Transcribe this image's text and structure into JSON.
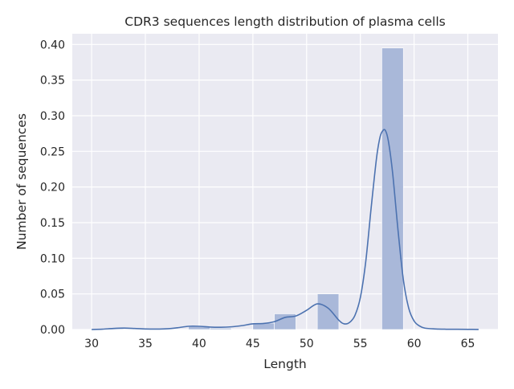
{
  "chart_data": {
    "type": "bar",
    "title": "CDR3 sequences length distribution of plasma cells",
    "xlabel": "Length",
    "ylabel": "Number of sequences",
    "xlim": [
      28.2,
      67.8
    ],
    "ylim": [
      0.0,
      0.415
    ],
    "xticks": [
      30,
      35,
      40,
      45,
      50,
      55,
      60,
      65
    ],
    "yticks": [
      0.0,
      0.05,
      0.1,
      0.15,
      0.2,
      0.25,
      0.3,
      0.35,
      0.4
    ],
    "ytick_labels": [
      "0.00",
      "0.05",
      "0.10",
      "0.15",
      "0.20",
      "0.25",
      "0.30",
      "0.35",
      "0.40"
    ],
    "grid": true,
    "colors": {
      "background": "#eaeaf2",
      "grid": "#ffffff",
      "bar": "#a9b8d9",
      "line": "#4c72b0"
    },
    "bins": [
      {
        "start": 31,
        "end": 33,
        "value": 0.001
      },
      {
        "start": 39,
        "end": 41,
        "value": 0.004
      },
      {
        "start": 41,
        "end": 43,
        "value": 0.002
      },
      {
        "start": 45,
        "end": 47,
        "value": 0.009
      },
      {
        "start": 47,
        "end": 49,
        "value": 0.022
      },
      {
        "start": 51,
        "end": 53,
        "value": 0.05
      },
      {
        "start": 57,
        "end": 59,
        "value": 0.395
      }
    ],
    "kde": {
      "x": [
        30,
        31,
        32,
        33,
        34,
        35,
        36,
        37,
        38,
        39,
        40,
        41,
        42,
        43,
        44,
        45,
        46,
        47,
        48,
        49,
        50,
        51,
        52,
        53,
        53.5,
        54,
        54.5,
        55,
        55.5,
        56,
        56.5,
        56.8,
        57,
        57.3,
        57.6,
        58,
        58.5,
        59,
        59.5,
        60,
        60.5,
        61,
        62,
        63,
        64,
        65,
        66
      ],
      "y": [
        0.0,
        0.0005,
        0.0015,
        0.002,
        0.0015,
        0.0008,
        0.0006,
        0.001,
        0.0025,
        0.0045,
        0.0045,
        0.0035,
        0.0032,
        0.0038,
        0.0055,
        0.008,
        0.0085,
        0.011,
        0.017,
        0.019,
        0.027,
        0.036,
        0.03,
        0.013,
        0.008,
        0.01,
        0.02,
        0.045,
        0.095,
        0.17,
        0.24,
        0.268,
        0.277,
        0.28,
        0.265,
        0.22,
        0.14,
        0.07,
        0.03,
        0.012,
        0.005,
        0.002,
        0.0008,
        0.0004,
        0.0003,
        0.0002,
        0.0001
      ]
    }
  }
}
